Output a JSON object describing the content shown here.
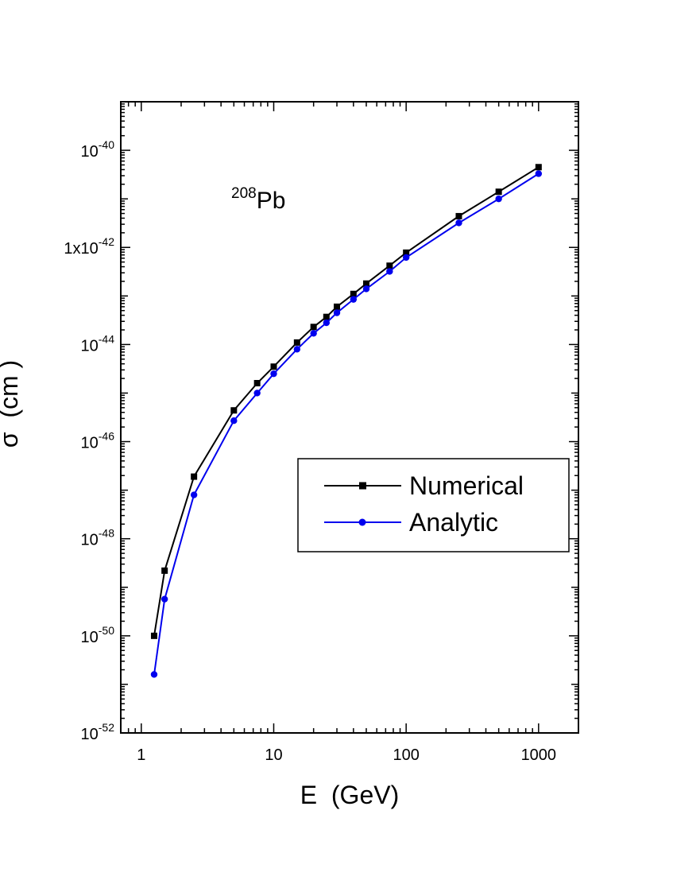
{
  "chart_data": {
    "type": "line",
    "xscale": "log",
    "yscale": "log",
    "xlim": [
      0.7,
      2000
    ],
    "ylim": [
      1e-52,
      1e-39
    ],
    "xlabel": "E  (GeV)",
    "ylabel": "σ  (cm )",
    "annotation": {
      "sup": "208",
      "text": "Pb"
    },
    "x_ticks": [
      {
        "value": 1,
        "label": "1"
      },
      {
        "value": 10,
        "label": "10"
      },
      {
        "value": 100,
        "label": "100"
      },
      {
        "value": 1000,
        "label": "1000"
      }
    ],
    "y_ticks": [
      {
        "value": 1e-52,
        "base": "10",
        "exp": "-52"
      },
      {
        "value": 1e-50,
        "base": "10",
        "exp": "-50"
      },
      {
        "value": 1e-48,
        "base": "10",
        "exp": "-48"
      },
      {
        "value": 1e-46,
        "base": "10",
        "exp": "-46"
      },
      {
        "value": 1e-44,
        "base": "10",
        "exp": "-44"
      },
      {
        "value": 1e-42,
        "base": "1x10",
        "exp": "-42"
      },
      {
        "value": 1e-40,
        "base": "10",
        "exp": "-40"
      }
    ],
    "legend_position": "center-right",
    "series": [
      {
        "name": "Numerical",
        "color": "#000000",
        "marker": "square",
        "x": [
          1.25,
          1.5,
          2.5,
          5,
          7.5,
          10,
          15,
          20,
          25,
          30,
          40,
          50,
          75,
          100,
          250,
          500,
          1000
        ],
        "y": [
          1e-50,
          2.2e-49,
          1.9e-47,
          4.4e-46,
          1.6e-45,
          3.5e-45,
          1.1e-44,
          2.3e-44,
          3.7e-44,
          6e-44,
          1.1e-43,
          1.8e-43,
          4.2e-43,
          7.8e-43,
          4.4e-42,
          1.4e-41,
          4.5e-41
        ]
      },
      {
        "name": "Analytic",
        "color": "#0000ee",
        "marker": "circle",
        "x": [
          1.25,
          1.5,
          2.5,
          5,
          7.5,
          10,
          15,
          20,
          25,
          30,
          40,
          50,
          75,
          100,
          250,
          500,
          1000
        ],
        "y": [
          1.6e-51,
          5.7e-50,
          8e-48,
          2.7e-46,
          1e-45,
          2.5e-45,
          8e-45,
          1.7e-44,
          2.8e-44,
          4.5e-44,
          8.5e-44,
          1.4e-43,
          3.2e-43,
          6.2e-43,
          3.2e-42,
          1e-41,
          3.3e-41
        ]
      }
    ]
  }
}
